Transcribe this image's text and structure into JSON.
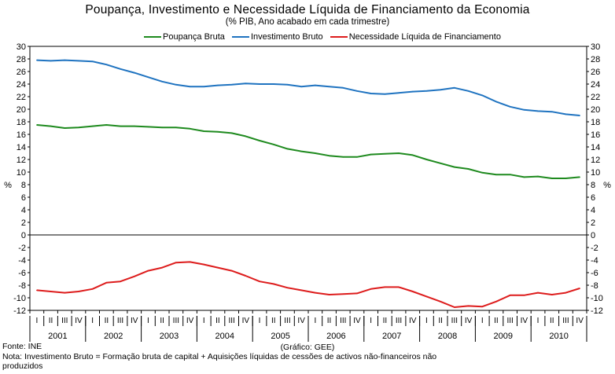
{
  "chart_data": {
    "type": "line",
    "title": "Poupança, Investimento e Necessidade Líquida de Financiamento da Economia",
    "subtitle": "(% PIB, Ano acabado em cada trimestre)",
    "ylabel": "%",
    "ylim": [
      -12,
      30
    ],
    "yticks": [
      30,
      28,
      26,
      24,
      22,
      20,
      18,
      16,
      14,
      12,
      10,
      8,
      6,
      4,
      2,
      0,
      -2,
      -4,
      -6,
      -8,
      -10,
      -12
    ],
    "years": [
      "2001",
      "2002",
      "2003",
      "2004",
      "2005",
      "2006",
      "2007",
      "2008",
      "2009",
      "2010"
    ],
    "quarters": [
      "I",
      "II",
      "III",
      "IV"
    ],
    "legend_position": "top-center",
    "series": [
      {
        "name": "Poupança Bruta",
        "color": "#1e8a1e",
        "values": [
          17.5,
          17.3,
          17.0,
          17.1,
          17.3,
          17.5,
          17.3,
          17.3,
          17.2,
          17.1,
          17.1,
          16.9,
          16.5,
          16.4,
          16.2,
          15.7,
          15.0,
          14.4,
          13.7,
          13.3,
          13.0,
          12.6,
          12.4,
          12.4,
          12.8,
          12.9,
          13.0,
          12.7,
          12.0,
          11.4,
          10.8,
          10.5,
          9.9,
          9.6,
          9.6,
          9.2,
          9.3,
          9.0,
          9.0,
          9.2
        ]
      },
      {
        "name": "Investimento Bruto",
        "color": "#1f73c0",
        "values": [
          27.8,
          27.7,
          27.8,
          27.7,
          27.6,
          27.1,
          26.4,
          25.8,
          25.1,
          24.4,
          23.9,
          23.6,
          23.6,
          23.8,
          23.9,
          24.1,
          24.0,
          24.0,
          23.9,
          23.6,
          23.8,
          23.6,
          23.4,
          22.9,
          22.5,
          22.4,
          22.6,
          22.8,
          22.9,
          23.1,
          23.4,
          22.9,
          22.2,
          21.2,
          20.4,
          19.9,
          19.7,
          19.6,
          19.2,
          19.0
        ]
      },
      {
        "name": "Necessidade Líquida de Financiamento",
        "color": "#dd1c1c",
        "values": [
          -8.8,
          -9.0,
          -9.2,
          -9.0,
          -8.6,
          -7.6,
          -7.4,
          -6.6,
          -5.7,
          -5.2,
          -4.4,
          -4.3,
          -4.7,
          -5.2,
          -5.7,
          -6.5,
          -7.4,
          -7.8,
          -8.4,
          -8.8,
          -9.2,
          -9.5,
          -9.4,
          -9.3,
          -8.6,
          -8.3,
          -8.3,
          -9.0,
          -9.8,
          -10.6,
          -11.5,
          -11.3,
          -11.4,
          -10.6,
          -9.6,
          -9.6,
          -9.2,
          -9.5,
          -9.2,
          -8.5
        ]
      }
    ]
  },
  "footer": {
    "fonte": "Fonte: INE",
    "grafico": "(Gráfico: GEE)",
    "nota": "Nota: Investimento Bruto = Formação bruta de capital + Aquisições líquidas de cessões de activos não-financeiros não",
    "nota_cont": "produzidos"
  }
}
